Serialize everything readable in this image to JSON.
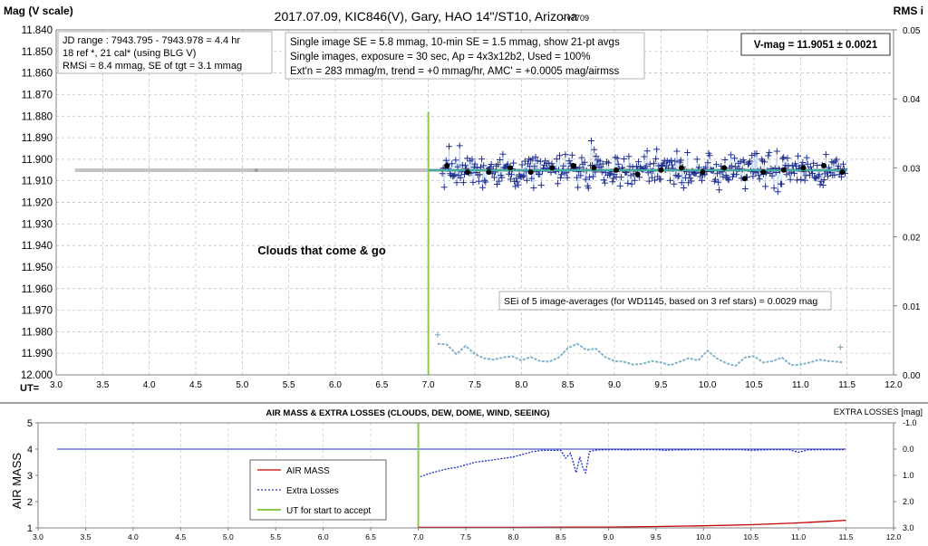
{
  "title": "2017.07.09,  KIC846(V),  Gary,  HAO 14\"/ST10, Arizona",
  "version": "- v7709",
  "colors": {
    "star": "#1f2f8f",
    "avg": "#000000",
    "rms": "#7fb1c8",
    "trend": "#3fae9a",
    "gray": "#c4c4c4",
    "airmass": "#c00000",
    "ut_line": "#8ccb4a",
    "losses": "#1c2fbf"
  },
  "chart_data": [
    {
      "type": "scatter",
      "ylabel": "Mag (V scale)",
      "y2label": "RMS i",
      "xlabel": "UT=",
      "xlim": [
        3.0,
        12.0
      ],
      "ylim": [
        11.84,
        12.0
      ],
      "y_inverted": true,
      "y2lim": [
        0,
        0.05
      ],
      "grid": true,
      "x_ticks": [
        "3.0",
        "3.5",
        "4.0",
        "4.5",
        "5.0",
        "5.5",
        "6.0",
        "6.5",
        "7.0",
        "7.5",
        "8.0",
        "8.5",
        "9.0",
        "9.5",
        "10.0",
        "10.5",
        "11.0",
        "11.5",
        "12.0"
      ],
      "y_ticks": [
        "11.840",
        "11.850",
        "11.860",
        "11.870",
        "11.880",
        "11.890",
        "11.900",
        "11.910",
        "11.920",
        "11.930",
        "11.940",
        "11.950",
        "11.960",
        "11.970",
        "11.980",
        "11.990",
        "12.000"
      ],
      "y2_ticks": [
        "0.05",
        "0.04",
        "0.03",
        "0.02",
        "0.01",
        "0.00"
      ],
      "ut_start": 7.0,
      "vmag_mean": 11.9051,
      "trend_range": [
        7.0,
        11.5
      ],
      "gray_line_range": [
        3.2,
        11.5
      ],
      "single_image_range": [
        7.15,
        11.48
      ],
      "single_image_sigma": 0.0058,
      "single_image_count": 420,
      "averages": {
        "x": [
          7.2,
          7.42,
          7.65,
          7.88,
          8.1,
          8.33,
          8.56,
          8.78,
          9.02,
          9.25,
          9.5,
          9.72,
          9.95,
          10.18,
          10.4,
          10.6,
          10.82,
          11.03,
          11.25,
          11.45
        ],
        "y": [
          11.903,
          11.906,
          11.906,
          11.904,
          11.906,
          11.904,
          11.903,
          11.904,
          11.905,
          11.907,
          11.905,
          11.904,
          11.906,
          11.904,
          11.909,
          11.906,
          11.905,
          11.904,
          11.903,
          11.906
        ]
      },
      "rms_series": {
        "x": [
          7.1,
          7.2,
          7.3,
          7.4,
          7.5,
          7.6,
          7.7,
          7.8,
          7.9,
          8.0,
          8.1,
          8.2,
          8.3,
          8.4,
          8.5,
          8.6,
          8.7,
          8.8,
          8.9,
          9.0,
          9.1,
          9.2,
          9.3,
          9.4,
          9.5,
          9.6,
          9.7,
          9.8,
          9.9,
          10.0,
          10.1,
          10.2,
          10.3,
          10.4,
          10.5,
          10.6,
          10.7,
          10.8,
          10.9,
          11.0,
          11.1,
          11.2,
          11.3,
          11.4,
          11.45
        ],
        "y": [
          0.0045,
          0.0044,
          0.003,
          0.0042,
          0.003,
          0.0024,
          0.0022,
          0.0025,
          0.0027,
          0.0021,
          0.0026,
          0.002,
          0.0019,
          0.0025,
          0.0039,
          0.0045,
          0.0036,
          0.0038,
          0.0026,
          0.002,
          0.0019,
          0.0015,
          0.0016,
          0.002,
          0.0018,
          0.0014,
          0.0019,
          0.0024,
          0.0021,
          0.0035,
          0.0024,
          0.0017,
          0.0013,
          0.0025,
          0.0027,
          0.0018,
          0.002,
          0.0025,
          0.0014,
          0.0015,
          0.0018,
          0.0022,
          0.002,
          0.0019,
          0.0018
        ]
      },
      "rms_outliers": [
        {
          "x": 7.1,
          "y": 0.0058
        },
        {
          "x": 11.43,
          "y": 0.004
        }
      ],
      "annotations": {
        "box1": [
          "JD range : 7943.795 - 7943.978 = 4.4 hr",
          "18 ref *, 21 cal* (using BLG V)",
          "RMSi = 8.4 mmag, SE of tgt = 3.1 mmag"
        ],
        "box2": [
          "Single image SE = 5.8 mmag, 10-min SE = 1.5 mmag, show 21-pt avgs",
          "Single images, exposure = 30 sec, Ap = 4x3x12b2, Used = 100%",
          "Ext'n = 283 mmag/m, trend = +0 mmag/hr, AMC' = +0.0005 mag/airmss"
        ],
        "vmag": "V-mag = 11.9051 ± 0.0021",
        "clouds": "Clouds  that  come  &  go",
        "sei": "SEi of 5 image-averages (for WD1145, based on 3 ref stars) = 0.0029 mag"
      }
    },
    {
      "type": "line",
      "title": "AIR MASS & EXTRA LOSSES (CLOUDS, DEW, DOME, WIND, SEEING)",
      "ylabel": "AIR MASS",
      "y2label": "EXTRA LOSSES [mag]",
      "xlim": [
        3.0,
        12.0
      ],
      "ylim": [
        1,
        5
      ],
      "y2lim": [
        -1.0,
        3.0
      ],
      "y2_inverted": true,
      "x_ticks": [
        "3.0",
        "3.5",
        "4.0",
        "4.5",
        "5.0",
        "5.5",
        "6.0",
        "6.5",
        "7.0",
        "7.5",
        "8.0",
        "8.5",
        "9.0",
        "9.5",
        "10.0",
        "10.5",
        "11.0",
        "11.5",
        "12.0"
      ],
      "y_ticks": [
        "5",
        "4",
        "3",
        "2",
        "1"
      ],
      "y2_ticks": [
        "-1.0",
        "0.0",
        "1.0",
        "2.0",
        "3.0"
      ],
      "legend": [
        "AIR MASS",
        "Extra Losses",
        "UT for start to accept"
      ],
      "legend_position": "bottom-left",
      "ut_start": 7.0,
      "reference_line": {
        "y": 4,
        "x": [
          3.2,
          11.5
        ]
      },
      "airmass": {
        "x": [
          7.0,
          8.0,
          9.0,
          9.5,
          10.0,
          10.5,
          11.0,
          11.3,
          11.5
        ],
        "y": [
          1.02,
          1.02,
          1.03,
          1.05,
          1.08,
          1.12,
          1.19,
          1.25,
          1.29
        ]
      },
      "losses": {
        "x": [
          7.02,
          7.1,
          7.2,
          7.3,
          7.4,
          7.5,
          7.6,
          7.7,
          7.8,
          7.9,
          8.0,
          8.1,
          8.2,
          8.3,
          8.4,
          8.5,
          8.55,
          8.6,
          8.63,
          8.66,
          8.7,
          8.73,
          8.76,
          8.8,
          8.85,
          8.9,
          9.0,
          9.1,
          9.2,
          9.3,
          9.4,
          9.5,
          9.6,
          9.7,
          9.8,
          9.9,
          10.0,
          10.1,
          10.2,
          10.3,
          10.4,
          10.5,
          10.6,
          10.7,
          10.8,
          10.9,
          11.0,
          11.1,
          11.2,
          11.3,
          11.4,
          11.48
        ],
        "y": [
          1.05,
          0.95,
          0.85,
          0.75,
          0.7,
          0.6,
          0.5,
          0.45,
          0.4,
          0.35,
          0.3,
          0.2,
          0.1,
          0.05,
          0.05,
          0.05,
          0.35,
          0.15,
          0.5,
          0.9,
          0.3,
          0.7,
          0.9,
          0.1,
          0.05,
          0.03,
          0.02,
          0.02,
          0.03,
          0.02,
          0.02,
          0.02,
          0.05,
          0.03,
          0.03,
          0.02,
          0.02,
          0.02,
          0.02,
          0.02,
          0.02,
          0.05,
          0.03,
          0.02,
          0.02,
          0.02,
          0.12,
          0.03,
          0.02,
          0.02,
          0.02,
          0.02
        ]
      }
    }
  ]
}
